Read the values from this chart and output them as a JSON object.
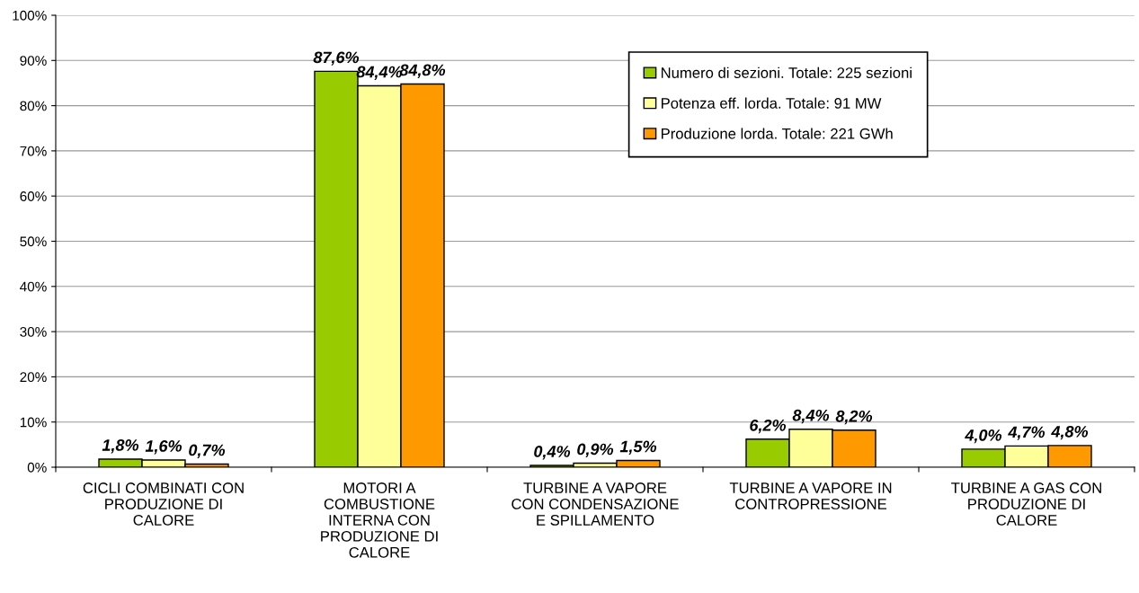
{
  "chart_data": {
    "type": "bar",
    "categories": [
      "CICLI COMBINATI CON\nPRODUZIONE DI\nCALORE",
      "MOTORI A\nCOMBUSTIONE\nINTERNA CON\nPRODUZIONE DI\nCALORE",
      "TURBINE A VAPORE\nCON CONDENSAZIONE\nE SPILLAMENTO",
      "TURBINE A VAPORE IN\nCONTROPRESSIONE",
      "TURBINE A GAS CON\nPRODUZIONE DI\nCALORE"
    ],
    "series": [
      {
        "name": "Numero di sezioni. Totale: 225 sezioni",
        "color": "#99cc00",
        "values": [
          1.8,
          87.6,
          0.4,
          6.2,
          4.0
        ],
        "value_labels": [
          "1,8%",
          "87,6%",
          "0,4%",
          "6,2%",
          "4,0%"
        ]
      },
      {
        "name": "Potenza eff. lorda. Totale: 91 MW",
        "color": "#ffff99",
        "values": [
          1.6,
          84.4,
          0.9,
          8.4,
          4.7
        ],
        "value_labels": [
          "1,6%",
          "84,4%",
          "0,9%",
          "8,4%",
          "4,7%"
        ]
      },
      {
        "name": "Produzione lorda. Totale: 221 GWh",
        "color": "#ff9900",
        "values": [
          0.7,
          84.8,
          1.5,
          8.2,
          4.8
        ],
        "value_labels": [
          "0,7%",
          "84,8%",
          "1,5%",
          "8,2%",
          "4,8%"
        ]
      }
    ],
    "ylim": [
      0,
      100
    ],
    "yticks": [
      {
        "value": 0,
        "label": "0%"
      },
      {
        "value": 10,
        "label": "10%"
      },
      {
        "value": 20,
        "label": "20%"
      },
      {
        "value": 30,
        "label": "30%"
      },
      {
        "value": 40,
        "label": "40%"
      },
      {
        "value": 50,
        "label": "50%"
      },
      {
        "value": 60,
        "label": "60%"
      },
      {
        "value": 70,
        "label": "70%"
      },
      {
        "value": 80,
        "label": "80%"
      },
      {
        "value": 90,
        "label": "90%"
      },
      {
        "value": 100,
        "label": "100%"
      }
    ],
    "grid": "y",
    "legend": "top right"
  }
}
